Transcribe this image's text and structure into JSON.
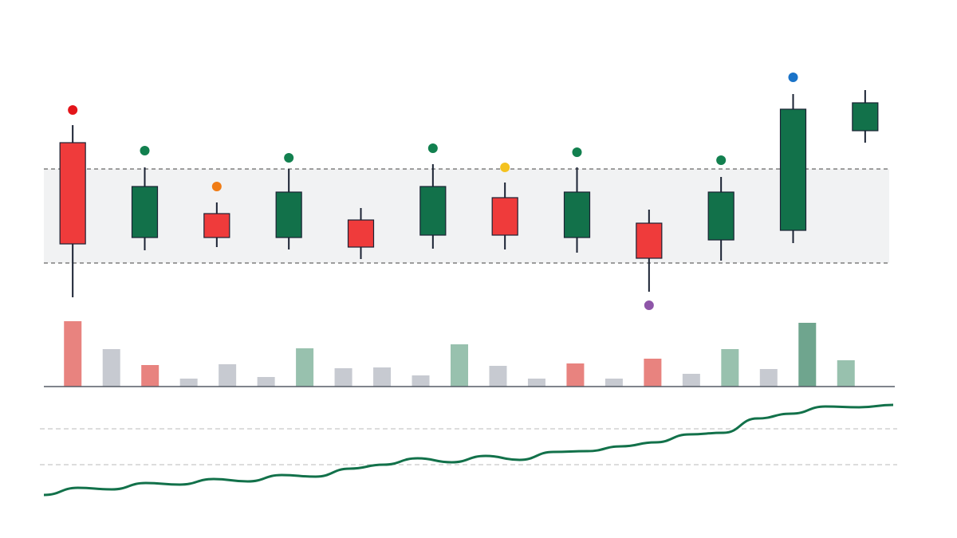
{
  "chart_data": [
    {
      "type": "candlestick",
      "categories": [
        null,
        null,
        null,
        null,
        null,
        null,
        null,
        null,
        null,
        null,
        null,
        null
      ],
      "open": [
        221,
        102,
        132,
        102,
        124,
        105,
        152,
        102,
        120,
        99,
        111,
        236
      ],
      "high": [
        243,
        190,
        146,
        188,
        139,
        194,
        171,
        190,
        137,
        178,
        282,
        287
      ],
      "low": [
        27,
        86,
        90,
        87,
        75,
        88,
        87,
        83,
        34,
        73,
        95,
        221
      ],
      "close": [
        94,
        166,
        102,
        159,
        90,
        166,
        105,
        159,
        76,
        159,
        263,
        271
      ],
      "up_color": "#12714a",
      "down_color": "#ef3b3b",
      "markers": {
        "values": [
          262,
          211,
          166,
          202,
          null,
          214,
          190,
          209,
          17,
          199,
          303,
          null
        ],
        "colors": [
          "#e3151a",
          "#12804f",
          "#f07c15",
          "#12804f",
          null,
          "#12804f",
          "#f4c21f",
          "#12804f",
          "#8e55a8",
          "#12804f",
          "#1a73c8",
          null
        ]
      },
      "band": [
        70,
        188
      ],
      "band_color": "#f1f2f3",
      "ylim": [
        0,
        340
      ]
    },
    {
      "type": "bar",
      "categories": [
        null,
        null,
        null,
        null,
        null,
        null,
        null,
        null,
        null,
        null,
        null,
        null,
        null,
        null,
        null,
        null,
        null,
        null,
        null,
        null,
        null
      ],
      "values": [
        82,
        47,
        27,
        10,
        28,
        12,
        48,
        23,
        24,
        14,
        53,
        26,
        10,
        29,
        10,
        35,
        16,
        47,
        22,
        80,
        33
      ],
      "colors": [
        "#e8837f",
        "#c7cad1",
        "#e8837f",
        "#c7cad1",
        "#c7cad1",
        "#c7cad1",
        "#98c1ae",
        "#c7cad1",
        "#c7cad1",
        "#c7cad1",
        "#98c1ae",
        "#c7cad1",
        "#c7cad1",
        "#e8837f",
        "#c7cad1",
        "#e8837f",
        "#c7cad1",
        "#98c1ae",
        "#c7cad1",
        "#6fa58e",
        "#98c1ae"
      ],
      "ylim": [
        0,
        100
      ]
    },
    {
      "type": "line",
      "categories": [
        null,
        null,
        null,
        null,
        null,
        null,
        null,
        null,
        null,
        null,
        null,
        null,
        null,
        null,
        null,
        null,
        null,
        null,
        null,
        null,
        null,
        null,
        null,
        null,
        null,
        null
      ],
      "values": [
        19,
        28,
        26,
        34,
        32,
        39,
        36,
        44,
        42,
        52,
        57,
        65,
        60,
        68,
        63,
        73,
        74,
        80,
        85,
        95,
        97,
        115,
        121,
        130,
        129,
        132
      ],
      "color": "#12714a",
      "ylim": [
        0,
        140
      ],
      "yticks": [
        57,
        102
      ],
      "grid": true
    }
  ]
}
